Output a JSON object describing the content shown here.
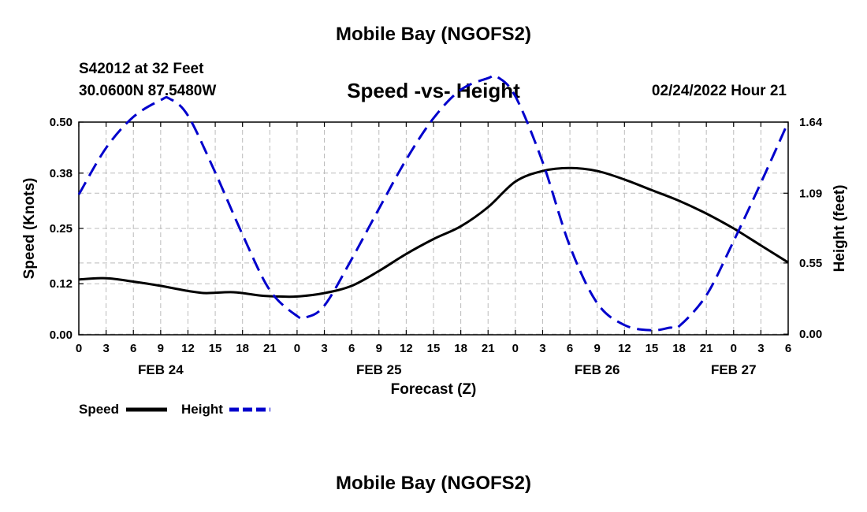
{
  "header": {
    "title": "Mobile Bay (NGOFS2)",
    "station_id": "S42012 at 32 Feet",
    "coordinates": "30.0600N  87.5480W",
    "chart_title": "Speed -vs- Height",
    "timestamp": "02/24/2022 Hour 21"
  },
  "footer": {
    "title": "Mobile Bay (NGOFS2)"
  },
  "colors": {
    "speed": "#000000",
    "height": "#0000cc",
    "grid": "#bbbbbb"
  },
  "chart_data": {
    "type": "line",
    "title": "Speed -vs- Height",
    "xlabel": "Forecast (Z)",
    "ylabel": "Speed (Knots)",
    "y2label": "Height (feet)",
    "xlim": [
      0,
      78
    ],
    "ylim": [
      0,
      0.5
    ],
    "y2lim": [
      -0.005,
      1.64
    ],
    "x_ticks": [
      0,
      3,
      6,
      9,
      12,
      15,
      18,
      21,
      24,
      27,
      30,
      33,
      36,
      39,
      42,
      45,
      48,
      51,
      54,
      57,
      60,
      63,
      66,
      69,
      72,
      75,
      78
    ],
    "x_tick_labels": [
      "0",
      "3",
      "6",
      "9",
      "12",
      "15",
      "18",
      "21",
      "0",
      "3",
      "6",
      "9",
      "12",
      "15",
      "18",
      "21",
      "0",
      "3",
      "6",
      "9",
      "12",
      "15",
      "18",
      "21",
      "0",
      "3",
      "6"
    ],
    "y_ticks": [
      0,
      0.12,
      0.25,
      0.38,
      0.5
    ],
    "y_tick_labels": [
      "0.00",
      "0.12",
      "0.25",
      "0.38",
      "0.50"
    ],
    "y2_ticks": [
      0,
      0.55,
      1.09,
      1.64
    ],
    "y2_tick_labels": [
      "0.00",
      "0.55",
      "1.09",
      "1.64"
    ],
    "date_labels": [
      {
        "x": 9,
        "label": "FEB 24"
      },
      {
        "x": 33,
        "label": "FEB 25"
      },
      {
        "x": 57,
        "label": "FEB 26"
      },
      {
        "x": 72,
        "label": "FEB 27"
      }
    ],
    "legend": [
      {
        "name": "Speed",
        "style": "solid"
      },
      {
        "name": "Height",
        "style": "dashed"
      }
    ],
    "series": [
      {
        "name": "Speed",
        "axis": "left",
        "style": "solid",
        "x": [
          0,
          3,
          6,
          9,
          12,
          14,
          17,
          20,
          22,
          24,
          27,
          30,
          33,
          36,
          39,
          42,
          45,
          48,
          51,
          54,
          57,
          60,
          63,
          66,
          69,
          72,
          75,
          78
        ],
        "values": [
          0.13,
          0.133,
          0.125,
          0.115,
          0.103,
          0.098,
          0.1,
          0.092,
          0.09,
          0.09,
          0.098,
          0.115,
          0.15,
          0.19,
          0.225,
          0.255,
          0.3,
          0.36,
          0.385,
          0.392,
          0.385,
          0.365,
          0.34,
          0.315,
          0.285,
          0.25,
          0.21,
          0.17
        ]
      },
      {
        "name": "Height",
        "axis": "right",
        "style": "dashed",
        "x": [
          0,
          3,
          6,
          9,
          10,
          12,
          15,
          18,
          21,
          24,
          25,
          27,
          30,
          33,
          36,
          39,
          42,
          45,
          46,
          48,
          51,
          54,
          57,
          60,
          63,
          65,
          66,
          69,
          72,
          75,
          78
        ],
        "values": [
          1.08,
          1.44,
          1.68,
          1.81,
          1.82,
          1.69,
          1.25,
          0.77,
          0.34,
          0.14,
          0.13,
          0.22,
          0.58,
          0.97,
          1.35,
          1.67,
          1.89,
          1.98,
          1.99,
          1.84,
          1.33,
          0.68,
          0.24,
          0.07,
          0.03,
          0.05,
          0.06,
          0.3,
          0.72,
          1.17,
          1.64
        ]
      }
    ]
  }
}
